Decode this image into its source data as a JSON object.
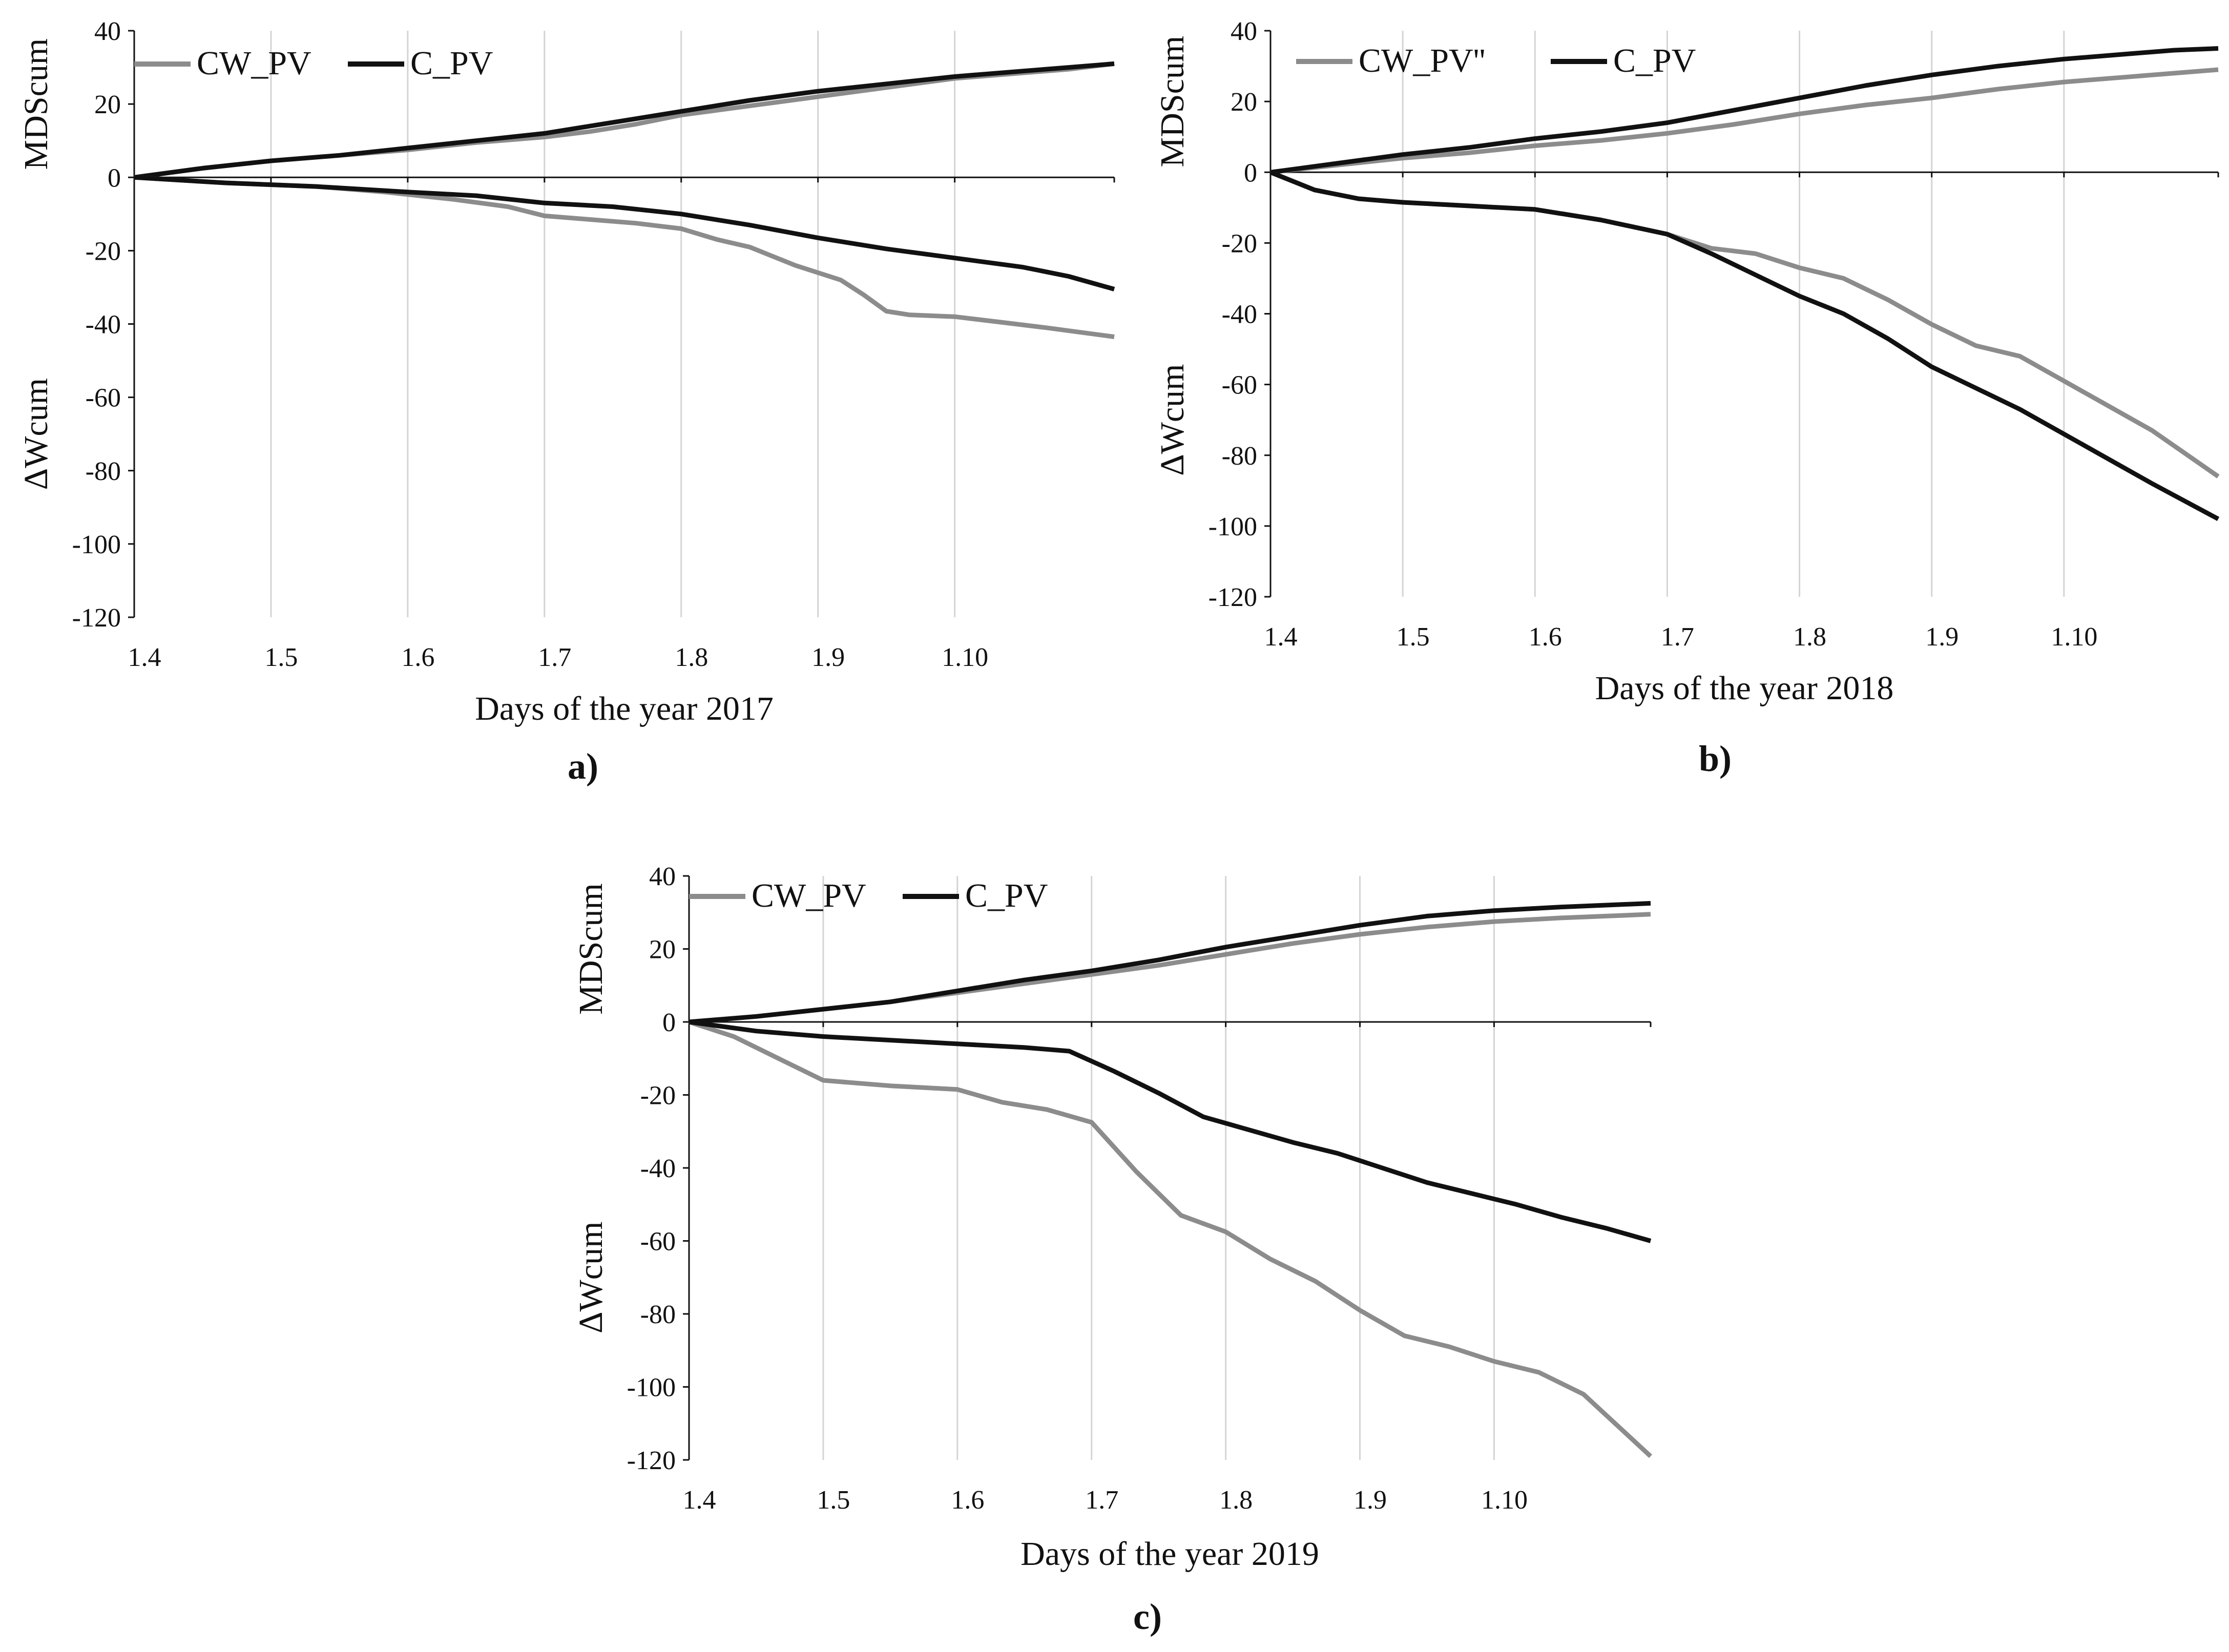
{
  "colors": {
    "cw_series": "#8c8c8c",
    "c_series": "#111111",
    "axis": "#111111",
    "gridline": "#d4d4d4",
    "text": "#111111"
  },
  "chart_data": [
    {
      "type": "line",
      "panel_label": "a)",
      "xlabel": "Days of the year 2017",
      "ylabel_top": "MDScum",
      "ylabel_bottom": "ΔWcum",
      "x_ticks": [
        "1.4",
        "1.5",
        "1.6",
        "1.7",
        "1.8",
        "1.9",
        "1.10"
      ],
      "xlim": [
        0,
        215
      ],
      "ylim": [
        -120,
        40
      ],
      "y_ticks": [
        40,
        20,
        0,
        -20,
        -40,
        -60,
        -80,
        -100,
        -120
      ],
      "grid": "vertical",
      "legend": [
        {
          "name": "CW_PV",
          "color": "#8c8c8c"
        },
        {
          "name": "C_PV",
          "color": "#111111"
        }
      ],
      "series": [
        {
          "name": "CW_PV",
          "group": "MDScum",
          "color": "#8c8c8c",
          "x": [
            0,
            15,
            30,
            45,
            60,
            75,
            90,
            100,
            110,
            120,
            135,
            150,
            165,
            180,
            195,
            205,
            215
          ],
          "y": [
            0,
            2.5,
            4.5,
            6,
            7.5,
            9.5,
            11,
            12.5,
            14.5,
            17,
            19.5,
            22,
            24.5,
            27,
            28.5,
            29.5,
            31
          ]
        },
        {
          "name": "C_PV",
          "group": "MDScum",
          "color": "#111111",
          "x": [
            0,
            15,
            30,
            45,
            60,
            75,
            90,
            100,
            110,
            120,
            135,
            150,
            165,
            180,
            195,
            205,
            215
          ],
          "y": [
            0,
            2.5,
            4.5,
            6,
            8,
            10,
            12,
            14,
            16,
            18,
            21,
            23.5,
            25.5,
            27.5,
            29,
            30,
            31
          ]
        },
        {
          "name": "CW_PV",
          "group": "ΔWcum",
          "color": "#8c8c8c",
          "x": [
            0,
            20,
            40,
            55,
            70,
            82,
            90,
            100,
            110,
            120,
            128,
            135,
            145,
            155,
            160,
            165,
            170,
            180,
            190,
            200,
            215
          ],
          "y": [
            0,
            -1.5,
            -2.5,
            -4,
            -6,
            -8,
            -10.5,
            -11.5,
            -12.5,
            -14,
            -17,
            -19,
            -24,
            -28,
            -32,
            -36.5,
            -37.5,
            -38,
            -39.5,
            -41,
            -43.5
          ]
        },
        {
          "name": "C_PV",
          "group": "ΔWcum",
          "color": "#111111",
          "x": [
            0,
            20,
            40,
            60,
            75,
            90,
            105,
            120,
            135,
            150,
            165,
            180,
            195,
            205,
            215
          ],
          "y": [
            0,
            -1.5,
            -2.5,
            -4,
            -5,
            -7,
            -8,
            -10,
            -13,
            -16.5,
            -19.5,
            -22,
            -24.5,
            -27,
            -30.5
          ]
        }
      ]
    },
    {
      "type": "line",
      "panel_label": "b)",
      "xlabel": "Days of the year 2018",
      "ylabel_top": "MDScum",
      "ylabel_bottom": "ΔWcum",
      "x_ticks": [
        "1.4",
        "1.5",
        "1.6",
        "1.7",
        "1.8",
        "1.9",
        "1.10"
      ],
      "xlim": [
        0,
        215
      ],
      "ylim": [
        -120,
        40
      ],
      "y_ticks": [
        40,
        20,
        0,
        -20,
        -40,
        -60,
        -80,
        -100,
        -120
      ],
      "grid": "vertical",
      "legend": [
        {
          "name": "CW_PV''",
          "color": "#8c8c8c"
        },
        {
          "name": "C_PV",
          "color": "#111111"
        }
      ],
      "series": [
        {
          "name": "CW_PV''",
          "group": "MDScum",
          "color": "#8c8c8c",
          "x": [
            0,
            15,
            30,
            45,
            60,
            75,
            90,
            105,
            120,
            135,
            150,
            165,
            180,
            195,
            205,
            215
          ],
          "y": [
            0,
            2,
            4,
            5.5,
            7.5,
            9,
            11,
            13.5,
            16.5,
            19,
            21,
            23.5,
            25.5,
            27,
            28,
            29
          ]
        },
        {
          "name": "C_PV",
          "group": "MDScum",
          "color": "#111111",
          "x": [
            0,
            15,
            30,
            45,
            60,
            75,
            90,
            105,
            120,
            135,
            150,
            165,
            180,
            195,
            205,
            215
          ],
          "y": [
            0,
            2.5,
            5,
            7,
            9.5,
            11.5,
            14,
            17.5,
            21,
            24.5,
            27.5,
            30,
            32,
            33.5,
            34.5,
            35
          ]
        },
        {
          "name": "CW_PV''",
          "group": "ΔWcum",
          "color": "#8c8c8c",
          "x": [
            0,
            10,
            20,
            30,
            45,
            60,
            75,
            90,
            100,
            110,
            120,
            130,
            140,
            150,
            160,
            170,
            180,
            190,
            200,
            215
          ],
          "y": [
            0,
            -5,
            -7.5,
            -8.5,
            -9.5,
            -10.5,
            -13.5,
            -17.5,
            -21.5,
            -23,
            -27,
            -30,
            -36,
            -43,
            -49,
            -52,
            -59,
            -66,
            -73,
            -86
          ]
        },
        {
          "name": "C_PV",
          "group": "ΔWcum",
          "color": "#111111",
          "x": [
            0,
            10,
            20,
            30,
            45,
            60,
            75,
            90,
            100,
            110,
            120,
            130,
            140,
            150,
            160,
            170,
            180,
            190,
            200,
            215
          ],
          "y": [
            0,
            -5,
            -7.5,
            -8.5,
            -9.5,
            -10.5,
            -13.5,
            -17.5,
            -23,
            -29,
            -35,
            -40,
            -47,
            -55,
            -61,
            -67,
            -74,
            -81,
            -88,
            -98
          ]
        }
      ]
    },
    {
      "type": "line",
      "panel_label": "c)",
      "xlabel": "Days of the year 2019",
      "ylabel_top": "MDScum",
      "ylabel_bottom": "ΔWcum",
      "x_ticks": [
        "1.4",
        "1.5",
        "1.6",
        "1.7",
        "1.8",
        "1.9",
        "1.10"
      ],
      "xlim": [
        0,
        215
      ],
      "ylim": [
        -120,
        40
      ],
      "y_ticks": [
        40,
        20,
        0,
        -20,
        -40,
        -60,
        -80,
        -100,
        -120
      ],
      "grid": "vertical",
      "legend": [
        {
          "name": "CW_PV",
          "color": "#8c8c8c"
        },
        {
          "name": "C_PV",
          "color": "#111111"
        }
      ],
      "series": [
        {
          "name": "CW_PV",
          "group": "MDScum",
          "color": "#8c8c8c",
          "x": [
            0,
            15,
            30,
            45,
            60,
            75,
            90,
            105,
            120,
            135,
            150,
            165,
            180,
            195,
            205,
            215
          ],
          "y": [
            0,
            1.5,
            3.5,
            5.5,
            8,
            10.5,
            13,
            15.5,
            18.5,
            21.5,
            24,
            26,
            27.5,
            28.5,
            29,
            29.5
          ]
        },
        {
          "name": "C_PV",
          "group": "MDScum",
          "color": "#111111",
          "x": [
            0,
            15,
            30,
            45,
            60,
            75,
            90,
            105,
            120,
            135,
            150,
            165,
            180,
            195,
            205,
            215
          ],
          "y": [
            0,
            1.5,
            3.5,
            5.5,
            8.5,
            11.5,
            14,
            17,
            20.5,
            23.5,
            26.5,
            29,
            30.5,
            31.5,
            32,
            32.5
          ]
        },
        {
          "name": "CW_PV",
          "group": "ΔWcum",
          "color": "#8c8c8c",
          "x": [
            0,
            10,
            20,
            30,
            45,
            60,
            70,
            80,
            90,
            100,
            110,
            120,
            130,
            140,
            150,
            160,
            170,
            180,
            190,
            200,
            215
          ],
          "y": [
            0,
            -4,
            -10,
            -16,
            -17.5,
            -18.5,
            -22,
            -24,
            -27.5,
            -41,
            -53,
            -57.5,
            -65,
            -71,
            -79,
            -86,
            -89,
            -93,
            -96,
            -102,
            -119
          ]
        },
        {
          "name": "C_PV",
          "group": "ΔWcum",
          "color": "#111111",
          "x": [
            0,
            15,
            30,
            45,
            60,
            75,
            85,
            95,
            105,
            115,
            125,
            135,
            145,
            155,
            165,
            175,
            185,
            195,
            205,
            215
          ],
          "y": [
            0,
            -2.5,
            -4,
            -5,
            -6,
            -7,
            -8,
            -13.5,
            -19.5,
            -26,
            -29.5,
            -33,
            -36,
            -40,
            -44,
            -47,
            -50,
            -53.5,
            -56.5,
            -60
          ]
        }
      ]
    }
  ]
}
